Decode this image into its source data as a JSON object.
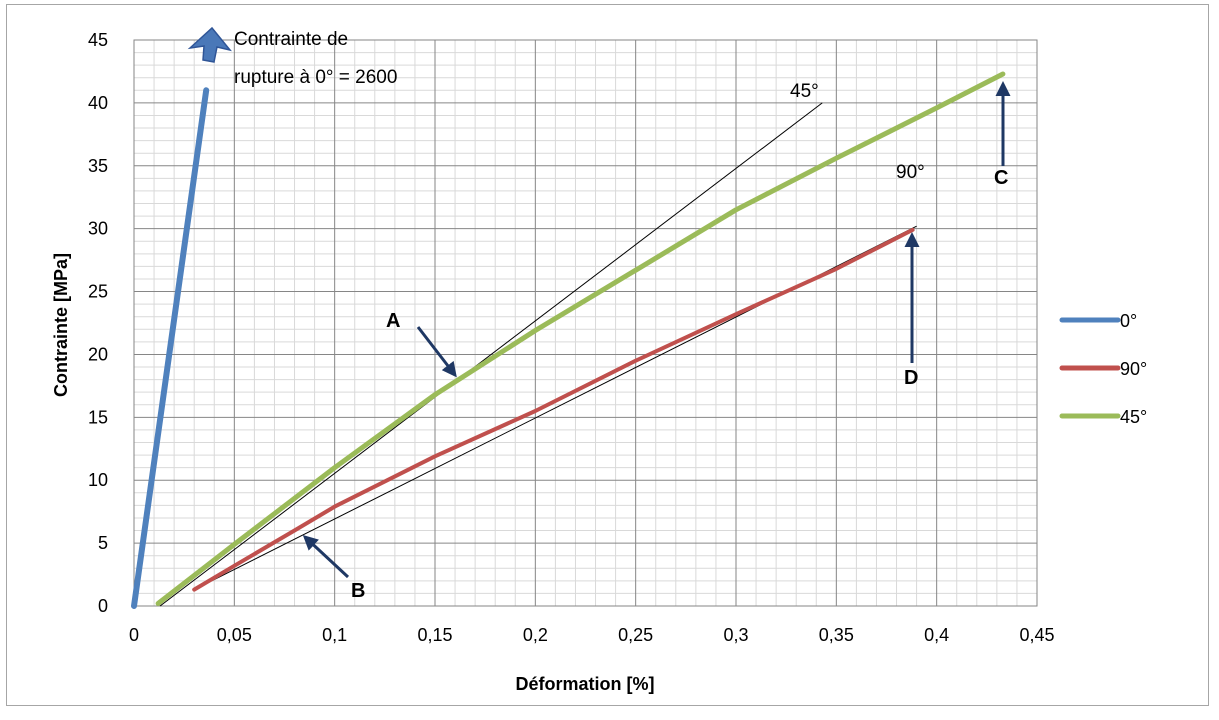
{
  "chart_data": {
    "type": "line",
    "xlabel": "Déformation [%]",
    "ylabel": "Contrainte [MPa]",
    "xlim": [
      0,
      0.45
    ],
    "ylim": [
      0,
      45
    ],
    "x_ticks": [
      "0",
      "0,05",
      "0,1",
      "0,15",
      "0,2",
      "0,25",
      "0,3",
      "0,35",
      "0,4",
      "0,45"
    ],
    "y_ticks": [
      "0",
      "5",
      "10",
      "15",
      "20",
      "25",
      "30",
      "35",
      "40",
      "45"
    ],
    "grid": true,
    "legend_position": "right",
    "series": [
      {
        "name": "0°",
        "color": "#4f81bd",
        "points": [
          [
            0.0,
            0.0
          ],
          [
            0.036,
            41.0
          ]
        ]
      },
      {
        "name": "90°",
        "color": "#c0504d",
        "points": [
          [
            0.03,
            1.3
          ],
          [
            0.05,
            3.2
          ],
          [
            0.08,
            6.0
          ],
          [
            0.1,
            7.9
          ],
          [
            0.15,
            11.9
          ],
          [
            0.2,
            15.5
          ],
          [
            0.25,
            19.5
          ],
          [
            0.3,
            23.2
          ],
          [
            0.35,
            26.8
          ],
          [
            0.388,
            29.9
          ]
        ]
      },
      {
        "name": "45°",
        "color": "#9bbb59",
        "points": [
          [
            0.012,
            0.2
          ],
          [
            0.05,
            4.9
          ],
          [
            0.1,
            11.0
          ],
          [
            0.15,
            16.8
          ],
          [
            0.2,
            21.9
          ],
          [
            0.25,
            26.7
          ],
          [
            0.3,
            31.5
          ],
          [
            0.35,
            35.6
          ],
          [
            0.4,
            39.6
          ],
          [
            0.433,
            42.3
          ]
        ]
      }
    ],
    "tangent_lines": [
      {
        "label": "45°",
        "from": [
          0.013,
          0.0
        ],
        "to": [
          0.343,
          40.0
        ]
      },
      {
        "label": "90°",
        "from": [
          0.03,
          1.3
        ],
        "to": [
          0.39,
          30.2
        ]
      }
    ],
    "annotations": {
      "rupture_text_line1": "Contrainte de",
      "rupture_text_line2": "rupture à 0° = 2600",
      "label_45": "45°",
      "label_90": "90°",
      "label_A": "A",
      "label_B": "B",
      "label_C": "C",
      "label_D": "D"
    }
  }
}
